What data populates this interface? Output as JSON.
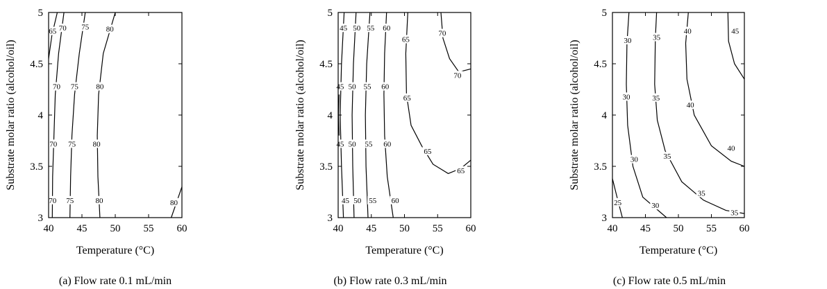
{
  "chart_data": [
    {
      "type": "contour",
      "xlabel": "Temperature (°C)",
      "ylabel": "Substrate molar ratio (alcohol/oil)",
      "caption": "(a)  Flow rate 0.1 mL/min",
      "xlim": [
        40,
        60
      ],
      "ylim": [
        3,
        5
      ],
      "xticks": [
        "40",
        "45",
        "50",
        "55",
        "60"
      ],
      "yticks": [
        "3",
        "3.5",
        "4",
        "4.5",
        "5"
      ],
      "grid": false,
      "levels": [
        {
          "level": "65",
          "points": [
            [
              40.0,
              4.55
            ],
            [
              40.5,
              4.78
            ],
            [
              41.3,
              5.0
            ]
          ],
          "labels": [
            {
              "text": "65",
              "x": 40.6,
              "y": 4.82
            }
          ]
        },
        {
          "level": "70",
          "points": [
            [
              40.55,
              3.0
            ],
            [
              40.6,
              3.4
            ],
            [
              40.8,
              3.8
            ],
            [
              41.0,
              4.2
            ],
            [
              41.5,
              4.6
            ],
            [
              42.3,
              5.0
            ]
          ],
          "labels": [
            {
              "text": "70",
              "x": 42.1,
              "y": 4.85
            },
            {
              "text": "70",
              "x": 41.2,
              "y": 4.28
            },
            {
              "text": "70",
              "x": 40.7,
              "y": 3.72
            },
            {
              "text": "70",
              "x": 40.6,
              "y": 3.17
            }
          ]
        },
        {
          "level": "75",
          "points": [
            [
              43.2,
              3.0
            ],
            [
              43.3,
              3.4
            ],
            [
              43.5,
              3.8
            ],
            [
              43.9,
              4.2
            ],
            [
              44.6,
              4.6
            ],
            [
              45.5,
              5.0
            ]
          ],
          "labels": [
            {
              "text": "75",
              "x": 45.5,
              "y": 4.86
            },
            {
              "text": "75",
              "x": 43.9,
              "y": 4.28
            },
            {
              "text": "75",
              "x": 43.5,
              "y": 3.72
            },
            {
              "text": "75",
              "x": 43.2,
              "y": 3.17
            }
          ]
        },
        {
          "level": "80",
          "points": [
            [
              47.7,
              3.0
            ],
            [
              47.4,
              3.4
            ],
            [
              47.3,
              3.8
            ],
            [
              47.5,
              4.2
            ],
            [
              48.2,
              4.6
            ],
            [
              50.0,
              5.0
            ]
          ],
          "labels": [
            {
              "text": "80",
              "x": 49.2,
              "y": 4.84
            },
            {
              "text": "80",
              "x": 47.7,
              "y": 4.28
            },
            {
              "text": "80",
              "x": 47.2,
              "y": 3.72
            },
            {
              "text": "80",
              "x": 47.6,
              "y": 3.17
            }
          ]
        },
        {
          "level": "80",
          "points": [
            [
              58.4,
              3.0
            ],
            [
              59.2,
              3.15
            ],
            [
              60.0,
              3.3
            ]
          ],
          "labels": [
            {
              "text": "80",
              "x": 58.8,
              "y": 3.15
            }
          ]
        }
      ]
    },
    {
      "type": "contour",
      "xlabel": "Temperature (°C)",
      "ylabel": "Substrate molar ratio (alcohol/oil)",
      "caption": "(b)  Flow rate 0.3 mL/min",
      "xlim": [
        40,
        60
      ],
      "ylim": [
        3,
        5
      ],
      "xticks": [
        "40",
        "45",
        "50",
        "55",
        "60"
      ],
      "yticks": [
        "3",
        "3.5",
        "4",
        "4.5",
        "5"
      ],
      "grid": false,
      "levels": [
        {
          "level": "40",
          "points": [
            [
              40.15,
              3.8
            ],
            [
              40.05,
              4.0
            ],
            [
              40.15,
              4.2
            ]
          ],
          "labels": []
        },
        {
          "level": "45",
          "points": [
            [
              40.8,
              3.0
            ],
            [
              40.5,
              3.5
            ],
            [
              40.3,
              4.0
            ],
            [
              40.5,
              4.5
            ],
            [
              40.9,
              5.0
            ]
          ],
          "labels": [
            {
              "text": "45",
              "x": 40.8,
              "y": 4.85
            },
            {
              "text": "45",
              "x": 40.3,
              "y": 4.28
            },
            {
              "text": "45",
              "x": 40.3,
              "y": 3.72
            },
            {
              "text": "45",
              "x": 41.1,
              "y": 3.17
            }
          ]
        },
        {
          "level": "50",
          "points": [
            [
              42.4,
              3.0
            ],
            [
              42.2,
              3.5
            ],
            [
              42.1,
              4.0
            ],
            [
              42.3,
              4.5
            ],
            [
              42.7,
              5.0
            ]
          ],
          "labels": [
            {
              "text": "50",
              "x": 42.8,
              "y": 4.85
            },
            {
              "text": "50",
              "x": 42.1,
              "y": 4.28
            },
            {
              "text": "50",
              "x": 42.1,
              "y": 3.72
            },
            {
              "text": "50",
              "x": 42.9,
              "y": 3.17
            }
          ]
        },
        {
          "level": "55",
          "points": [
            [
              44.5,
              3.0
            ],
            [
              44.2,
              3.5
            ],
            [
              44.1,
              4.0
            ],
            [
              44.3,
              4.5
            ],
            [
              44.8,
              5.0
            ]
          ],
          "labels": [
            {
              "text": "55",
              "x": 44.9,
              "y": 4.85
            },
            {
              "text": "55",
              "x": 44.4,
              "y": 4.28
            },
            {
              "text": "55",
              "x": 44.6,
              "y": 3.72
            },
            {
              "text": "55",
              "x": 45.2,
              "y": 3.17
            }
          ]
        },
        {
          "level": "60",
          "points": [
            [
              48.3,
              3.0
            ],
            [
              47.4,
              3.4
            ],
            [
              47.0,
              3.8
            ],
            [
              46.9,
              4.2
            ],
            [
              47.0,
              4.6
            ],
            [
              47.3,
              5.0
            ]
          ],
          "labels": [
            {
              "text": "60",
              "x": 47.3,
              "y": 4.85
            },
            {
              "text": "60",
              "x": 47.1,
              "y": 4.28
            },
            {
              "text": "60",
              "x": 47.4,
              "y": 3.72
            },
            {
              "text": "60",
              "x": 48.6,
              "y": 3.17
            }
          ]
        },
        {
          "level": "65",
          "points": [
            [
              50.5,
              5.0
            ],
            [
              50.2,
              4.6
            ],
            [
              50.3,
              4.2
            ],
            [
              51.0,
              3.9
            ],
            [
              52.6,
              3.7
            ],
            [
              54.3,
              3.52
            ],
            [
              56.6,
              3.43
            ],
            [
              58.5,
              3.48
            ],
            [
              60.0,
              3.56
            ]
          ],
          "labels": [
            {
              "text": "65",
              "x": 50.2,
              "y": 4.74
            },
            {
              "text": "65",
              "x": 50.4,
              "y": 4.17
            },
            {
              "text": "65",
              "x": 53.5,
              "y": 3.65
            },
            {
              "text": "65",
              "x": 58.5,
              "y": 3.46
            }
          ]
        },
        {
          "level": "70",
          "points": [
            [
              55.5,
              5.0
            ],
            [
              55.8,
              4.75
            ],
            [
              56.8,
              4.55
            ],
            [
              58.2,
              4.42
            ],
            [
              60.0,
              4.45
            ]
          ],
          "labels": [
            {
              "text": "70",
              "x": 55.7,
              "y": 4.8
            },
            {
              "text": "70",
              "x": 58.0,
              "y": 4.39
            }
          ]
        }
      ]
    },
    {
      "type": "contour",
      "xlabel": "Temperature (°C)",
      "ylabel": "Substrate molar ratio (alcohol/oil)",
      "caption": "(c)  Flow rate 0.5 mL/min",
      "xlim": [
        40,
        60
      ],
      "ylim": [
        3,
        5
      ],
      "xticks": [
        "40",
        "45",
        "50",
        "55",
        "60"
      ],
      "yticks": [
        "3",
        "3.5",
        "4",
        "4.5",
        "5"
      ],
      "grid": false,
      "levels": [
        {
          "level": "25",
          "points": [
            [
              40.0,
              3.38
            ],
            [
              40.7,
              3.2
            ],
            [
              41.5,
              3.0
            ]
          ],
          "labels": [
            {
              "text": "25",
              "x": 40.8,
              "y": 3.15
            }
          ]
        },
        {
          "level": "30",
          "points": [
            [
              42.5,
              5.0
            ],
            [
              42.2,
              4.7
            ],
            [
              42.1,
              4.3
            ],
            [
              42.3,
              3.9
            ],
            [
              43.1,
              3.5
            ],
            [
              44.6,
              3.2
            ],
            [
              48.2,
              3.0
            ]
          ],
          "labels": [
            {
              "text": "30",
              "x": 42.3,
              "y": 4.73
            },
            {
              "text": "30",
              "x": 42.1,
              "y": 4.18
            },
            {
              "text": "30",
              "x": 43.3,
              "y": 3.57
            },
            {
              "text": "30",
              "x": 46.5,
              "y": 3.12
            }
          ]
        },
        {
          "level": "35",
          "points": [
            [
              46.7,
              5.0
            ],
            [
              46.5,
              4.75
            ],
            [
              46.4,
              4.3
            ],
            [
              46.8,
              3.95
            ],
            [
              48.0,
              3.65
            ],
            [
              50.5,
              3.35
            ],
            [
              53.8,
              3.17
            ],
            [
              57.2,
              3.07
            ],
            [
              60.0,
              3.04
            ]
          ],
          "labels": [
            {
              "text": "35",
              "x": 46.7,
              "y": 4.76
            },
            {
              "text": "35",
              "x": 46.6,
              "y": 4.17
            },
            {
              "text": "35",
              "x": 48.3,
              "y": 3.6
            },
            {
              "text": "35",
              "x": 53.5,
              "y": 3.24
            },
            {
              "text": "35",
              "x": 58.5,
              "y": 3.05
            }
          ]
        },
        {
          "level": "40",
          "points": [
            [
              51.5,
              5.0
            ],
            [
              51.1,
              4.7
            ],
            [
              51.3,
              4.35
            ],
            [
              52.4,
              4.0
            ],
            [
              55.0,
              3.7
            ],
            [
              58.0,
              3.55
            ],
            [
              60.0,
              3.5
            ]
          ],
          "labels": [
            {
              "text": "40",
              "x": 51.4,
              "y": 4.82
            },
            {
              "text": "40",
              "x": 51.8,
              "y": 4.1
            },
            {
              "text": "40",
              "x": 58.0,
              "y": 3.68
            }
          ]
        },
        {
          "level": "45",
          "points": [
            [
              57.5,
              5.0
            ],
            [
              57.6,
              4.72
            ],
            [
              58.5,
              4.5
            ],
            [
              60.0,
              4.35
            ]
          ],
          "labels": [
            {
              "text": "45",
              "x": 58.6,
              "y": 4.82
            }
          ]
        }
      ]
    }
  ]
}
